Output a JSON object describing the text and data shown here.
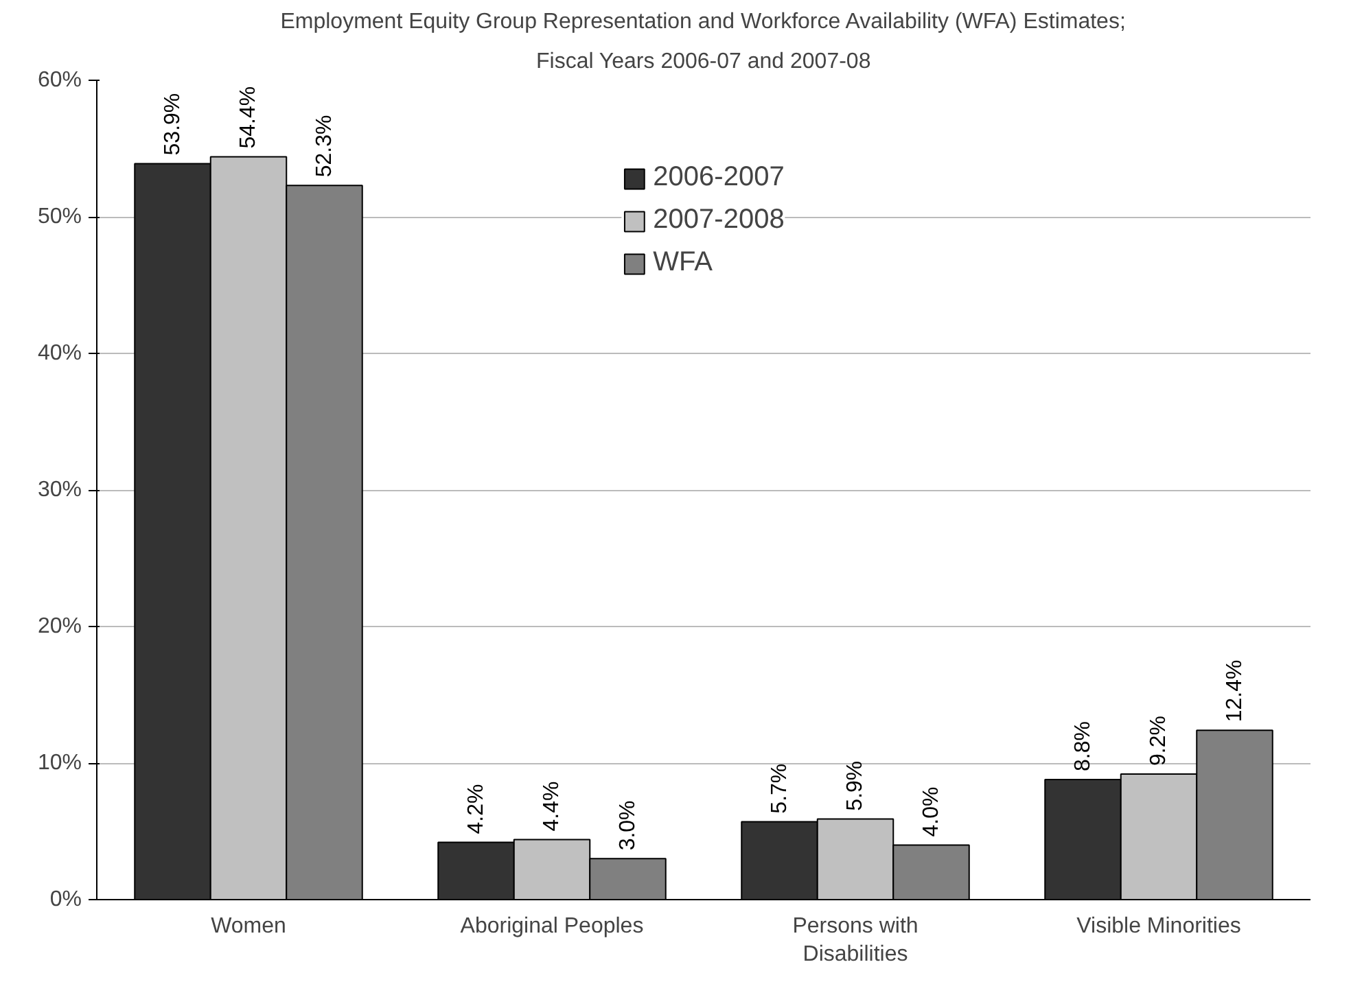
{
  "chart_data": {
    "type": "bar",
    "title": "Employment Equity Group Representation and Workforce Availability (WFA) Estimates;",
    "subtitle": "Fiscal Years 2006-07 and 2007-08",
    "categories": [
      "Women",
      "Aboriginal Peoples",
      "Persons with Disabilities",
      "Visible Minorities"
    ],
    "series": [
      {
        "name": "2006-2007",
        "color": "#333333",
        "values": [
          53.9,
          4.2,
          5.7,
          8.8
        ],
        "value_labels": [
          "53.9%",
          "4.2%",
          "5.7%",
          "8.8%"
        ]
      },
      {
        "name": "2007-2008",
        "color": "#c0c0c0",
        "values": [
          54.4,
          4.4,
          5.9,
          9.2
        ],
        "value_labels": [
          "54.4%",
          "4.4%",
          "5.9%",
          "9.2%"
        ]
      },
      {
        "name": "WFA",
        "color": "#808080",
        "values": [
          52.3,
          3.0,
          4.0,
          12.4
        ],
        "value_labels": [
          "52.3%",
          "3.0%",
          "4.0%",
          "12.4%"
        ]
      }
    ],
    "ylim": [
      0,
      60
    ],
    "yticks": [
      {
        "value": 0,
        "label": "0%"
      },
      {
        "value": 10,
        "label": "10%"
      },
      {
        "value": 20,
        "label": "20%"
      },
      {
        "value": 30,
        "label": "30%"
      },
      {
        "value": 40,
        "label": "40%"
      },
      {
        "value": 50,
        "label": "50%"
      },
      {
        "value": 60,
        "label": "60%"
      }
    ],
    "grid": "y",
    "legend": "top"
  }
}
